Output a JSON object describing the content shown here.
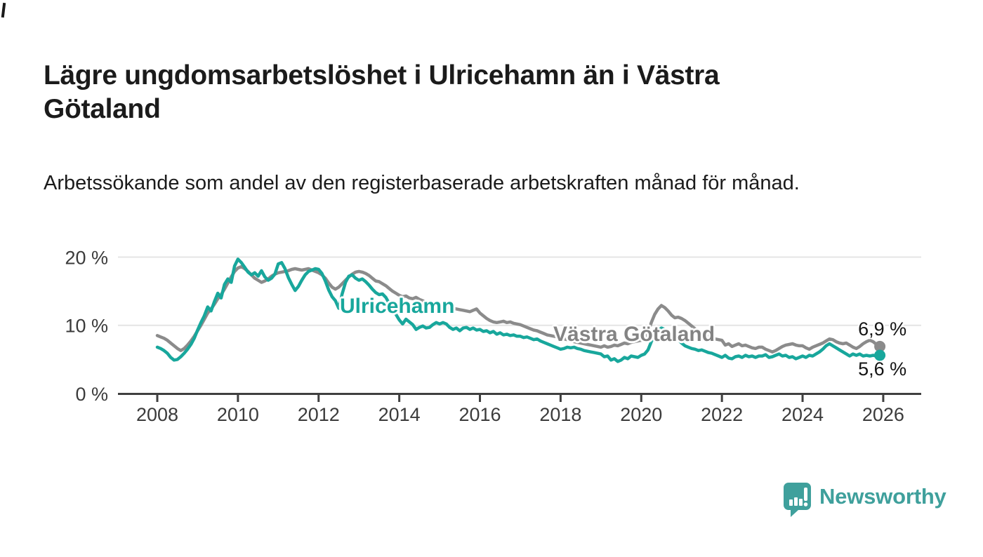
{
  "header": {
    "title": "Lägre ungdomsarbetslöshet i Ulricehamn än i Västra Götaland",
    "subtitle": "Arbetssökande som andel av den registerbaserade arbetskraften månad för månad."
  },
  "colors": {
    "teal_accent": "#18a79c",
    "gray_accent": "#8b8b8b",
    "grid": "#e4e4e4",
    "axis": "#3f3f3f",
    "axis_text": "#3b3b3b",
    "title_text": "#1b1b1b"
  },
  "chart_data": {
    "type": "line",
    "title": "Lägre ungdomsarbetslöshet i Ulricehamn än i Västra Götaland",
    "subtitle": "Arbetssökande som andel av den registerbaserade arbetskraften månad för månad.",
    "x_unit": "month",
    "x_start": "2008-01",
    "x_end": "2025-12",
    "x_tick_labels": [
      "2008",
      "2010",
      "2012",
      "2014",
      "2016",
      "2018",
      "2020",
      "2022",
      "2024",
      "2026"
    ],
    "y_ticks": [
      0,
      10,
      20
    ],
    "y_tick_labels": [
      "0 %",
      "10 %",
      "20 %"
    ],
    "ylim": [
      0,
      21
    ],
    "grid": true,
    "legend": "inline-labels",
    "series": [
      {
        "id": "vastra-gotaland",
        "name": "Västra Götaland",
        "color": "#8b8b8b",
        "end_label": "6,9 %",
        "end_value": 6.9,
        "label_position": "above",
        "values": [
          8.5,
          8.3,
          8.1,
          7.8,
          7.4,
          7.0,
          6.6,
          6.3,
          6.6,
          7.1,
          7.7,
          8.4,
          9.2,
          10.0,
          10.9,
          11.8,
          12.4,
          13.1,
          13.9,
          14.5,
          15.3,
          16.2,
          17.1,
          17.9,
          18.4,
          18.6,
          18.3,
          17.9,
          17.4,
          16.9,
          16.6,
          16.3,
          16.5,
          16.8,
          17.2,
          17.5,
          17.7,
          17.8,
          17.9,
          18.0,
          18.2,
          18.3,
          18.2,
          18.1,
          18.2,
          18.3,
          18.1,
          17.9,
          17.7,
          17.4,
          16.9,
          16.2,
          15.6,
          15.3,
          15.6,
          16.1,
          16.6,
          17.1,
          17.5,
          17.8,
          17.9,
          17.8,
          17.6,
          17.3,
          16.9,
          16.5,
          16.4,
          16.1,
          15.8,
          15.4,
          15.0,
          14.7,
          14.4,
          14.2,
          14.3,
          14.0,
          13.9,
          14.1,
          13.8,
          13.6,
          13.4,
          13.2,
          13.1,
          13.0,
          12.9,
          12.8,
          12.7,
          12.6,
          12.5,
          12.4,
          12.3,
          12.2,
          12.1,
          12.0,
          12.2,
          12.4,
          11.8,
          11.4,
          11.0,
          10.7,
          10.5,
          10.4,
          10.5,
          10.6,
          10.4,
          10.5,
          10.3,
          10.2,
          10.1,
          9.9,
          9.7,
          9.5,
          9.3,
          9.2,
          9.0,
          8.8,
          8.6,
          8.5,
          8.4,
          8.3,
          8.2,
          8.0,
          7.9,
          7.7,
          7.6,
          7.5,
          7.4,
          7.3,
          7.2,
          7.1,
          7.0,
          6.9,
          6.8,
          7.0,
          6.8,
          6.9,
          7.1,
          7.0,
          7.2,
          7.4,
          7.3,
          7.5,
          7.6,
          7.7,
          7.8,
          8.0,
          8.9,
          10.4,
          11.6,
          12.4,
          12.9,
          12.6,
          12.1,
          11.5,
          11.1,
          11.2,
          11.0,
          10.7,
          10.3,
          9.9,
          9.5,
          9.1,
          8.8,
          8.6,
          8.4,
          8.2,
          8.0,
          7.9,
          7.8,
          7.1,
          7.3,
          6.9,
          7.1,
          7.3,
          7.0,
          7.1,
          6.9,
          6.7,
          6.6,
          6.8,
          6.8,
          6.5,
          6.3,
          6.1,
          6.3,
          6.6,
          6.9,
          7.1,
          7.2,
          7.3,
          7.1,
          7.0,
          7.0,
          6.7,
          6.5,
          6.8,
          7.0,
          7.2,
          7.4,
          7.7,
          8.0,
          7.9,
          7.6,
          7.4,
          7.3,
          7.4,
          7.1,
          6.8,
          6.6,
          6.9,
          7.3,
          7.6,
          7.8,
          7.6,
          7.2,
          6.9
        ]
      },
      {
        "id": "ulricehamn",
        "name": "Ulricehamn",
        "color": "#18a79c",
        "end_label": "5,6 %",
        "end_value": 5.6,
        "label_position": "below",
        "values": [
          6.8,
          6.6,
          6.3,
          5.9,
          5.3,
          4.9,
          5.0,
          5.4,
          5.9,
          6.5,
          7.2,
          8.1,
          9.3,
          10.4,
          11.4,
          12.7,
          12.1,
          13.5,
          14.7,
          14.0,
          16.0,
          16.8,
          16.3,
          18.7,
          19.7,
          19.2,
          18.5,
          17.8,
          17.4,
          17.7,
          17.2,
          18.0,
          17.1,
          16.6,
          16.9,
          17.5,
          19.0,
          19.2,
          18.3,
          17.0,
          16.0,
          15.1,
          15.7,
          16.6,
          17.4,
          17.9,
          18.1,
          18.3,
          18.2,
          17.6,
          16.5,
          15.2,
          14.2,
          13.6,
          12.5,
          14.6,
          16.3,
          17.2,
          17.4,
          16.9,
          16.6,
          16.8,
          16.4,
          15.9,
          15.3,
          14.8,
          14.5,
          14.6,
          14.1,
          13.2,
          12.4,
          11.6,
          10.8,
          10.2,
          10.9,
          10.5,
          10.1,
          9.4,
          9.7,
          9.9,
          9.6,
          9.7,
          10.1,
          10.4,
          10.2,
          10.4,
          10.2,
          9.7,
          9.4,
          9.6,
          9.2,
          9.6,
          9.7,
          9.4,
          9.6,
          9.3,
          9.4,
          9.1,
          9.2,
          8.9,
          9.1,
          8.7,
          8.9,
          8.6,
          8.7,
          8.5,
          8.6,
          8.4,
          8.4,
          8.2,
          8.3,
          8.1,
          7.9,
          8.0,
          7.7,
          7.5,
          7.3,
          7.1,
          6.9,
          6.7,
          6.5,
          6.6,
          6.8,
          6.7,
          6.8,
          6.6,
          6.5,
          6.3,
          6.2,
          6.1,
          6.0,
          5.9,
          5.8,
          5.4,
          5.5,
          4.9,
          5.1,
          4.7,
          4.9,
          5.3,
          5.1,
          5.5,
          5.4,
          5.3,
          5.6,
          5.8,
          6.4,
          7.6,
          8.6,
          9.3,
          9.6,
          9.4,
          9.0,
          8.6,
          8.2,
          7.9,
          7.4,
          7.0,
          6.8,
          6.6,
          6.5,
          6.3,
          6.4,
          6.2,
          6.0,
          5.9,
          5.7,
          5.5,
          5.3,
          5.6,
          5.2,
          5.1,
          5.4,
          5.5,
          5.3,
          5.6,
          5.4,
          5.5,
          5.3,
          5.5,
          5.5,
          5.7,
          5.3,
          5.4,
          5.6,
          5.8,
          5.5,
          5.6,
          5.3,
          5.4,
          5.1,
          5.3,
          5.5,
          5.3,
          5.6,
          5.5,
          5.8,
          6.1,
          6.5,
          7.0,
          7.3,
          7.0,
          6.7,
          6.4,
          6.1,
          5.8,
          5.5,
          5.8,
          5.6,
          5.8,
          5.5,
          5.6,
          5.5,
          5.6,
          5.5,
          5.6
        ]
      }
    ]
  },
  "branding": {
    "name": "Newsworthy",
    "color": "#3fa09c",
    "icon": "newsworthy-speech-bubble-chart-icon"
  }
}
